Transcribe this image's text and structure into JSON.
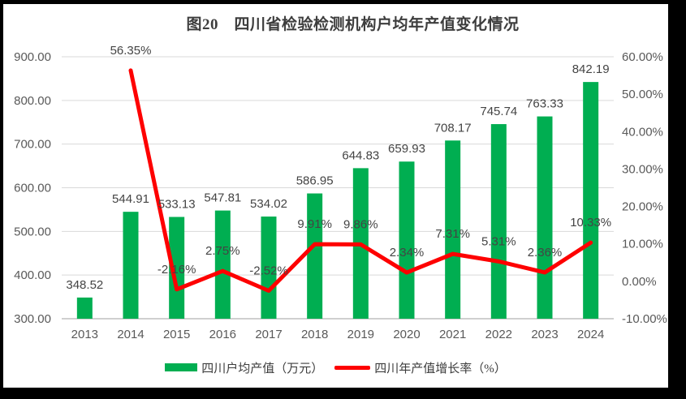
{
  "title": {
    "text": "图20　四川省检验检测机构户均年产值变化情况"
  },
  "chart_data": {
    "type": "combo-bar-line",
    "categories": [
      "2013",
      "2014",
      "2015",
      "2016",
      "2017",
      "2018",
      "2019",
      "2020",
      "2021",
      "2022",
      "2023",
      "2024"
    ],
    "series": [
      {
        "name": "四川户均产值（万元）",
        "type": "bar",
        "axis": "left",
        "color": "#00AE51",
        "values": [
          348.52,
          544.91,
          533.13,
          547.81,
          534.02,
          586.95,
          644.83,
          659.93,
          708.17,
          745.74,
          763.33,
          842.19
        ],
        "labels": [
          "348.52",
          "544.91",
          "533.13",
          "547.81",
          "534.02",
          "586.95",
          "644.83",
          "659.93",
          "708.17",
          "745.74",
          "763.33",
          "842.19"
        ]
      },
      {
        "name": "四川年产值增长率（%）",
        "type": "line",
        "axis": "right",
        "color": "#FE0000",
        "values": [
          null,
          56.35,
          -2.16,
          2.75,
          -2.52,
          9.91,
          9.86,
          2.34,
          7.31,
          5.31,
          2.36,
          10.33
        ],
        "labels": [
          "",
          "56.35%",
          "-2.16%",
          "2.75%",
          "-2.52%",
          "9.91%",
          "9.86%",
          "2.34%",
          "7.31%",
          "5.31%",
          "2.36%",
          "10.33%"
        ]
      }
    ],
    "left_axis": {
      "min": 300,
      "max": 900,
      "step": 100,
      "tick_labels": [
        "300.00",
        "400.00",
        "500.00",
        "600.00",
        "700.00",
        "800.00",
        "900.00"
      ]
    },
    "right_axis": {
      "min": -10,
      "max": 60,
      "step": 10,
      "tick_labels": [
        "-10.00%",
        "0.00%",
        "10.00%",
        "20.00%",
        "30.00%",
        "40.00%",
        "50.00%",
        "60.00%"
      ]
    },
    "grid": true,
    "legend_position": "bottom",
    "colors": {
      "gridline": "#D9D9D9",
      "axis_line": "#BFBFBF",
      "tick_text": "#595959",
      "label_text": "#444444",
      "background": "#FFFFFF",
      "page_border": "#000000"
    }
  },
  "legend": {
    "items": [
      {
        "label": "四川户均产值（万元）",
        "swatch": "bar",
        "color": "#00AE51"
      },
      {
        "label": "四川年产值增长率（%）",
        "swatch": "line",
        "color": "#FE0000"
      }
    ]
  }
}
